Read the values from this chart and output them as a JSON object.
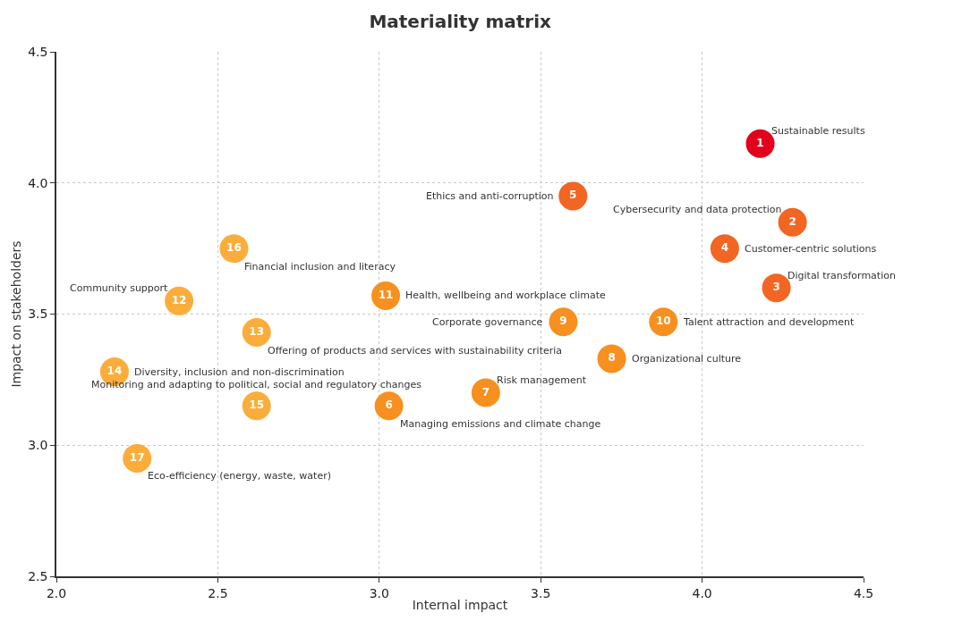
{
  "chart_data": {
    "type": "scatter",
    "title": "Materiality matrix",
    "xlabel": "Internal impact",
    "ylabel": "Impact on stakeholders",
    "series": [
      {
        "name": "1",
        "color": "#e2001a",
        "x": [
          4.18
        ],
        "values": [
          4.15
        ]
      },
      {
        "name": "2",
        "color": "#f26522",
        "x": [
          4.28
        ],
        "values": [
          3.85
        ]
      },
      {
        "name": "3",
        "color": "#f26522",
        "x": [
          4.23
        ],
        "values": [
          3.6
        ]
      },
      {
        "name": "4",
        "color": "#f26522",
        "x": [
          4.07
        ],
        "values": [
          3.75
        ]
      },
      {
        "name": "5",
        "color": "#f26522",
        "x": [
          3.6
        ],
        "values": [
          3.95
        ]
      },
      {
        "name": "6",
        "color": "#f7901e",
        "x": [
          3.03
        ],
        "values": [
          3.15
        ]
      },
      {
        "name": "7",
        "color": "#f7901e",
        "x": [
          3.33
        ],
        "values": [
          3.2
        ]
      },
      {
        "name": "8",
        "color": "#f7901e",
        "x": [
          3.72
        ],
        "values": [
          3.33
        ]
      },
      {
        "name": "9",
        "color": "#f7901e",
        "x": [
          3.57
        ],
        "values": [
          3.47
        ]
      },
      {
        "name": "10",
        "color": "#f7901e",
        "x": [
          3.88
        ],
        "values": [
          3.47
        ]
      },
      {
        "name": "11",
        "color": "#f7901e",
        "x": [
          3.02
        ],
        "values": [
          3.57
        ]
      },
      {
        "name": "12",
        "color": "#fbad3c",
        "x": [
          2.38
        ],
        "values": [
          3.55
        ]
      },
      {
        "name": "13",
        "color": "#fbad3c",
        "x": [
          2.62
        ],
        "values": [
          3.43
        ]
      },
      {
        "name": "14",
        "color": "#fbad3c",
        "x": [
          2.18
        ],
        "values": [
          3.28
        ]
      },
      {
        "name": "15",
        "color": "#fbad3c",
        "x": [
          2.62
        ],
        "values": [
          3.15
        ]
      },
      {
        "name": "16",
        "color": "#fbad3c",
        "x": [
          2.55
        ],
        "values": [
          3.75
        ]
      },
      {
        "name": "17",
        "color": "#fbad3c",
        "x": [
          2.25
        ],
        "values": [
          2.95
        ]
      }
    ],
    "annotations": [
      {
        "text": "Sustainable results",
        "x": 4.18,
        "y": 4.15
      },
      {
        "text": "Cybersecurity and data protection",
        "x": 4.28,
        "y": 3.85
      },
      {
        "text": "Digital transformation",
        "x": 4.23,
        "y": 3.6
      },
      {
        "text": "Customer-centric solutions",
        "x": 4.07,
        "y": 3.75
      },
      {
        "text": "Ethics and anti-corruption",
        "x": 3.6,
        "y": 3.95
      },
      {
        "text": "Managing emissions and climate change",
        "x": 3.03,
        "y": 3.15
      },
      {
        "text": "Risk management",
        "x": 3.33,
        "y": 3.2
      },
      {
        "text": "Organizational culture",
        "x": 3.72,
        "y": 3.33
      },
      {
        "text": "Corporate governance",
        "x": 3.57,
        "y": 3.47
      },
      {
        "text": "Talent attraction and development",
        "x": 3.88,
        "y": 3.47
      },
      {
        "text": "Health, wellbeing and workplace climate",
        "x": 3.02,
        "y": 3.57
      },
      {
        "text": "Community support",
        "x": 2.38,
        "y": 3.55
      },
      {
        "text": "Offering of products and services with sustainability criteria",
        "x": 2.62,
        "y": 3.43
      },
      {
        "text": "Diversity, inclusion and non-discrimination",
        "x": 2.18,
        "y": 3.28
      },
      {
        "text": "Monitoring and adapting to political, social and regulatory changes",
        "x": 2.62,
        "y": 3.15
      },
      {
        "text": "Financial inclusion and literacy",
        "x": 2.55,
        "y": 3.75
      },
      {
        "text": "Eco-efficiency (energy, waste, water)",
        "x": 2.25,
        "y": 2.95
      }
    ],
    "xlim": [
      2.0,
      4.5
    ],
    "xticks": [
      {
        "value": 2.0,
        "label": "2.0"
      },
      {
        "value": 2.5,
        "label": "2.5"
      },
      {
        "value": 3.0,
        "label": "3.0"
      },
      {
        "value": 3.5,
        "label": "3.5"
      },
      {
        "value": 4.0,
        "label": "4.0"
      },
      {
        "value": 4.5,
        "label": "4.5"
      }
    ],
    "ylim": [
      2.5,
      4.5
    ],
    "yticks": [
      {
        "value": 2.5,
        "label": "2.5"
      },
      {
        "value": 3.0,
        "label": "3.0"
      },
      {
        "value": 3.5,
        "label": "3.5"
      },
      {
        "value": 4.0,
        "label": "4.0"
      },
      {
        "value": 4.5,
        "label": "4.5"
      }
    ],
    "grid": true,
    "marker": "circle"
  }
}
